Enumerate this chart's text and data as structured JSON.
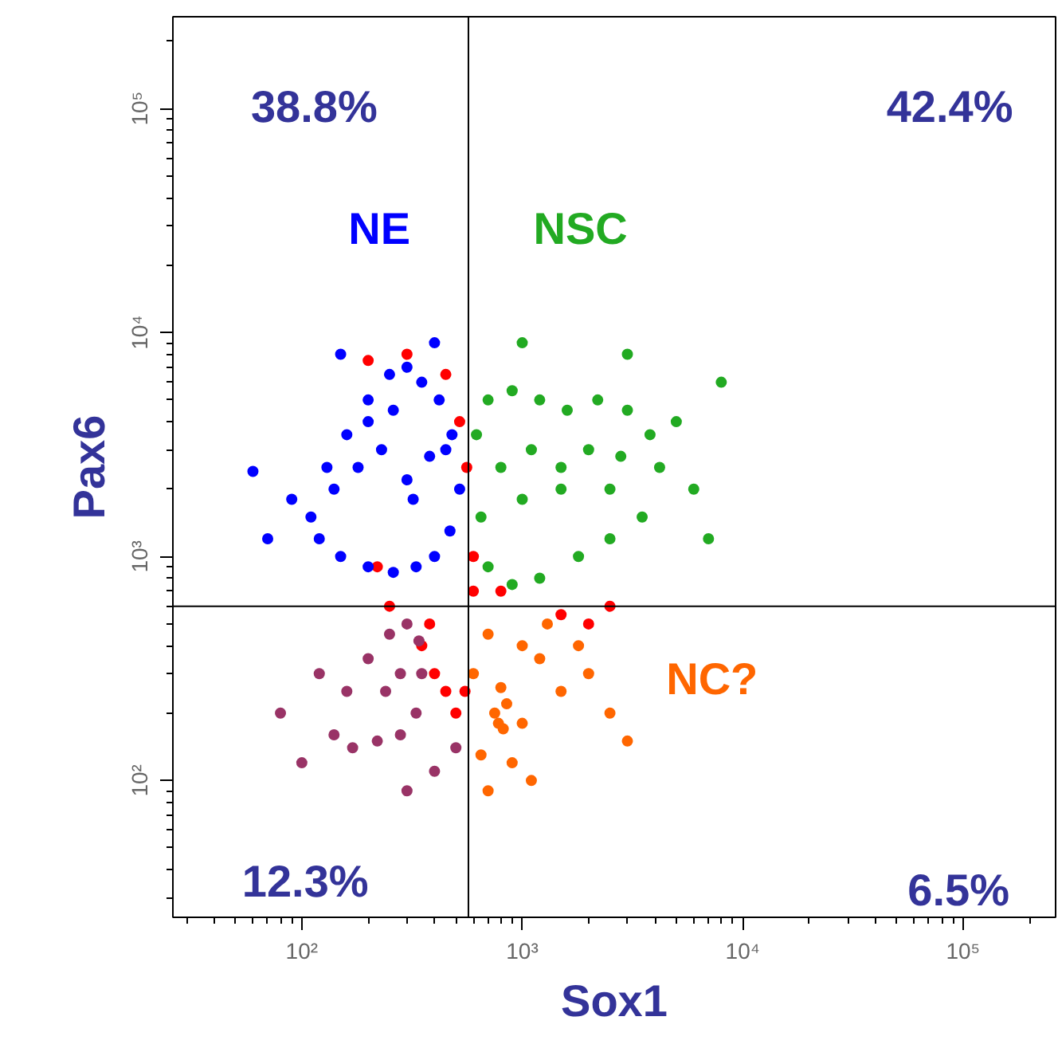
{
  "chart_data": {
    "type": "scatter",
    "xlabel": "Sox1",
    "ylabel": "Pax6",
    "log": "xy",
    "grid": false,
    "marker": "circle",
    "xlim": [
      26,
      263000
    ],
    "ylim": [
      24.5,
      257000
    ],
    "xticks": [
      {
        "value": 100,
        "label": "10²"
      },
      {
        "value": 1000,
        "label": "10³"
      },
      {
        "value": 10000,
        "label": "10⁴"
      },
      {
        "value": 100000,
        "label": "10⁵"
      }
    ],
    "yticks": [
      {
        "value": 100,
        "label": "10²"
      },
      {
        "value": 1000,
        "label": "10³"
      },
      {
        "value": 10000,
        "label": "10⁴"
      },
      {
        "value": 100000,
        "label": "10⁵"
      }
    ],
    "ref_lines": [
      {
        "axis": "x",
        "value": 570,
        "color": "#000000"
      },
      {
        "axis": "y",
        "value": 600,
        "color": "#000000"
      }
    ],
    "series": [
      {
        "color": "#ff0000",
        "x": [
          200,
          300,
          450,
          520,
          560,
          600,
          800,
          1500,
          2000,
          2500,
          380,
          350,
          400,
          450,
          500,
          550,
          600,
          250,
          220
        ],
        "values": [
          7500,
          8000,
          6500,
          4000,
          2500,
          1000,
          700,
          550,
          500,
          600,
          500,
          400,
          300,
          250,
          200,
          250,
          700,
          600,
          900
        ]
      },
      {
        "name": "NE",
        "color": "#0000ff",
        "x": [
          110,
          130,
          160,
          200,
          250,
          300,
          350,
          420,
          480,
          520,
          120,
          150,
          200,
          260,
          330,
          400,
          470,
          140,
          180,
          230,
          300,
          380,
          450,
          200,
          260,
          320,
          90,
          70,
          60,
          150,
          400
        ],
        "values": [
          1500,
          2500,
          3500,
          5000,
          6500,
          7000,
          6000,
          5000,
          3500,
          2000,
          1200,
          1000,
          900,
          850,
          900,
          1000,
          1300,
          2000,
          2500,
          3000,
          2200,
          2800,
          3000,
          4000,
          4500,
          1800,
          1800,
          1200,
          2400,
          8000,
          9000
        ]
      },
      {
        "name": "NSC",
        "color": "#22aa22",
        "x": [
          620,
          700,
          900,
          1200,
          1600,
          2200,
          3000,
          3800,
          4200,
          3500,
          2500,
          1800,
          1200,
          900,
          700,
          650,
          800,
          1100,
          1500,
          2000,
          2800,
          1000,
          1500,
          2500,
          5000,
          6000,
          8000,
          7000,
          3000,
          1000
        ],
        "values": [
          3500,
          5000,
          5500,
          5000,
          4500,
          5000,
          4500,
          3500,
          2500,
          1500,
          1200,
          1000,
          800,
          750,
          900,
          1500,
          2500,
          3000,
          2500,
          3000,
          2800,
          1800,
          2000,
          2000,
          4000,
          2000,
          6000,
          1200,
          8000,
          9000
        ]
      },
      {
        "color": "#993366",
        "x": [
          140,
          170,
          220,
          280,
          330,
          350,
          340,
          300,
          250,
          200,
          160,
          240,
          280,
          100,
          120,
          80,
          400,
          500,
          300
        ],
        "values": [
          160,
          140,
          150,
          160,
          200,
          300,
          420,
          500,
          450,
          350,
          250,
          250,
          300,
          120,
          300,
          200,
          110,
          140,
          90
        ]
      },
      {
        "name": "NC?",
        "color": "#ff6600",
        "x": [
          750,
          800,
          850,
          820,
          780,
          600,
          700,
          1000,
          1200,
          1500,
          2000,
          2500,
          3000,
          900,
          1100,
          1300,
          650,
          1800,
          700,
          1000
        ],
        "values": [
          200,
          260,
          220,
          170,
          180,
          300,
          450,
          400,
          350,
          250,
          300,
          200,
          150,
          120,
          100,
          500,
          130,
          400,
          90,
          180
        ]
      }
    ],
    "annotations": [
      "38.8%",
      "42.4%",
      "12.3%",
      "6.5%"
    ]
  }
}
